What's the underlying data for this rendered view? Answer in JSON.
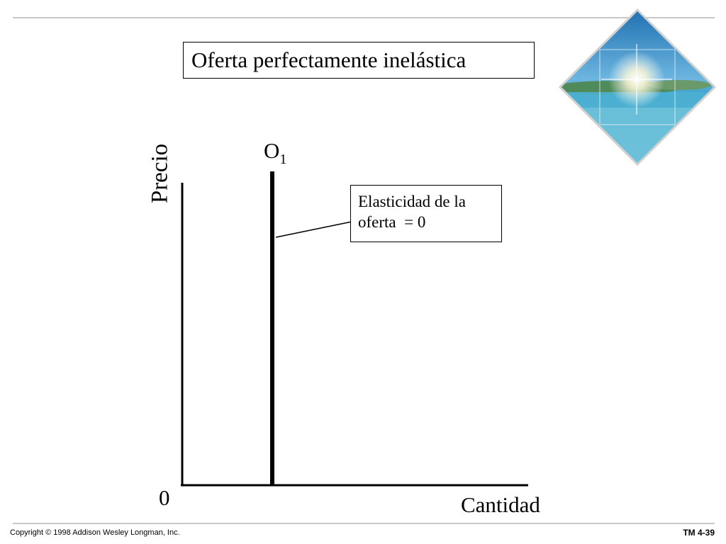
{
  "title": "Oferta perfectamente inelástica",
  "axes": {
    "y_label": "Precio",
    "x_label": "Cantidad",
    "origin": "0"
  },
  "curve": {
    "letter": "O",
    "subscript": "1",
    "type": "vertical"
  },
  "annotation": {
    "line1": "Elasticidad de la",
    "line2": "oferta  = 0"
  },
  "decoration": {
    "name": "tropical-island-photo",
    "colors": {
      "sky": "#2f8fc8",
      "sea": "#5fb8d8",
      "land": "#5a8f6a",
      "sun": "#ffffff"
    }
  },
  "footer": {
    "copyright": "Copyright © 1998 Addison Wesley Longman, Inc.",
    "slide_id": "TM 4-39"
  }
}
